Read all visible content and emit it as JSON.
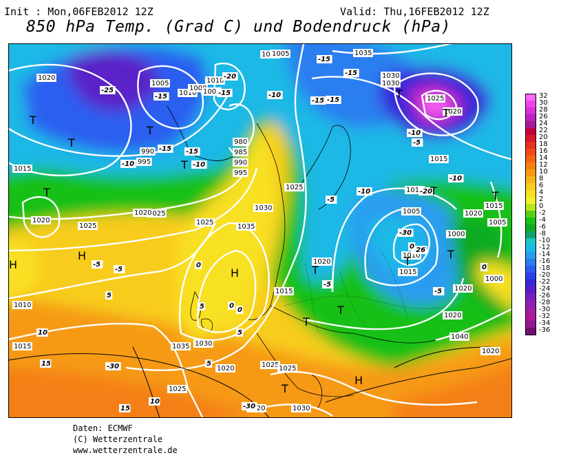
{
  "header": {
    "init": "Init : Mon,06FEB2012 12Z",
    "valid": "Valid: Thu,16FEB2012 12Z",
    "title": "850 hPa Temp. (Grad C) und Bodendruck (hPa)"
  },
  "footer": {
    "line1": "Daten: ECMWF",
    "line2": "(C) Wetterzentrale",
    "line3": "www.wetterzentrale.de"
  },
  "colorbar": {
    "labels": [
      "32",
      "30",
      "28",
      "26",
      "24",
      "22",
      "20",
      "18",
      "16",
      "14",
      "12",
      "10",
      "8",
      "6",
      "4",
      "2",
      "0",
      "-2",
      "-4",
      "-6",
      "-8",
      "-10",
      "-12",
      "-14",
      "-16",
      "-18",
      "-20",
      "-22",
      "-24",
      "-26",
      "-28",
      "-30",
      "-32",
      "-34",
      "-36"
    ],
    "colors": [
      "#ff66ff",
      "#ee44ee",
      "#d830d8",
      "#c020c0",
      "#a81a99",
      "#c4003a",
      "#d8162e",
      "#e83020",
      "#f04a18",
      "#f46414",
      "#f47f12",
      "#f69a14",
      "#f8b418",
      "#f8cc1e",
      "#f8e024",
      "#f2f028",
      "#b8e61a",
      "#58d01a",
      "#18c018",
      "#10aa22",
      "#16a070",
      "#18c8c8",
      "#1ab8e6",
      "#2c9cf0",
      "#2a7ef0",
      "#2a5ef0",
      "#2a40e8",
      "#3828d8",
      "#5a20c8",
      "#7a20c0",
      "#9020b8",
      "#a020a0",
      "#b01898",
      "#901890",
      "#701070"
    ]
  },
  "map": {
    "pressure_labels": [
      "1020",
      "1015",
      "1020",
      "1025",
      "1025",
      "1025",
      "1020",
      "1030",
      "1035",
      "1035",
      "1030",
      "1025",
      "1020",
      "1025",
      "1030",
      "1025",
      "1020",
      "1015",
      "1015",
      "1010",
      "1005",
      "1000",
      "1005",
      "1010",
      "1015",
      "1020",
      "1020",
      "1040",
      "1035",
      "1030",
      "1030",
      "1025",
      "1020",
      "1015",
      "1015",
      "1010",
      "1005",
      "1000",
      "1005",
      "1010",
      "990",
      "995",
      "980",
      "985",
      "990",
      "995",
      "1000",
      "1005",
      "1010",
      "1015",
      "1020",
      "1020",
      "1025",
      "1020"
    ],
    "temp_labels": [
      "-25",
      "-15",
      "-15",
      "-10",
      "-15",
      "-10",
      "-20",
      "-15",
      "-10",
      "-15",
      "-15",
      "-15",
      "-15",
      "-10",
      "-5",
      "-5",
      "-5",
      "0",
      "0",
      "5",
      "10",
      "5",
      "0",
      "-5",
      "-30",
      "-26",
      "-20",
      "-10",
      "-10",
      "-5",
      "-5",
      "0",
      "0",
      "5",
      "5",
      "10",
      "15",
      "15",
      "-30",
      "-30"
    ],
    "system_marks": [
      "H",
      "H",
      "H",
      "H",
      "T",
      "T",
      "T",
      "T",
      "T",
      "T",
      "T",
      "T",
      "T",
      "T",
      "T",
      "T",
      "T",
      "T",
      "T"
    ]
  }
}
